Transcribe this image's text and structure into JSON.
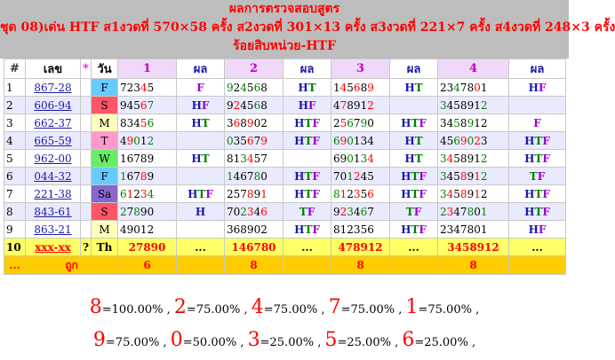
{
  "header": {
    "title": "ผลการตรวจสอบสูตร",
    "line2": "ชุด 08)เด่น HTF ส1งวดที่ 570×58 ครั้ง ส2งวดที่ 301×13 ครั้ง ส3งวดที่ 221×7 ครั้ง ส4งวดที่ 248×3 ครั้ง",
    "line3": "ร้อยสิบหน่วย-HTF"
  },
  "columns": [
    "#",
    "เลข",
    "*",
    "วัน",
    "1",
    "ผล",
    "2",
    "ผล",
    "3",
    "ผล",
    "4",
    "ผล"
  ],
  "colors": {
    "black": "#000000",
    "red": "#ff0000",
    "green": "#008000",
    "blue": "#1a1aaa",
    "purple": "#9900cc"
  },
  "rows": [
    {
      "n": "1",
      "lek": "867-28",
      "day": "F",
      "day_bg": "#66ccff",
      "cells": [
        {
          "d": "72345",
          "r": "F"
        },
        {
          "d": "924568",
          "r": "HT"
        },
        {
          "d": "145689",
          "r": "HT"
        },
        {
          "d": "2347801",
          "r": "HF"
        }
      ]
    },
    {
      "n": "2",
      "lek": "606-94",
      "day": "S",
      "day_bg": "#ff5566",
      "cells": [
        {
          "d": "94567",
          "r": "HF"
        },
        {
          "d": "924568",
          "r": "HF"
        },
        {
          "d": "478912",
          "r": ""
        },
        {
          "d": "3458912",
          "r": ""
        }
      ]
    },
    {
      "n": "3",
      "lek": "662-37",
      "day": "M",
      "day_bg": "#ffffbb",
      "cells": [
        {
          "d": "83456",
          "r": "HT"
        },
        {
          "d": "368902",
          "r": "HTF"
        },
        {
          "d": "256790",
          "r": "HTF"
        },
        {
          "d": "3458912",
          "r": "F"
        }
      ]
    },
    {
      "n": "4",
      "lek": "665-59",
      "day": "T",
      "day_bg": "#ff99cc",
      "cells": [
        {
          "d": "49012",
          "r": ""
        },
        {
          "d": "035679",
          "r": "HTF"
        },
        {
          "d": "690134",
          "r": "HT"
        },
        {
          "d": "4569023",
          "r": "HTF"
        }
      ]
    },
    {
      "n": "5",
      "lek": "962-00",
      "day": "W",
      "day_bg": "#66ee66",
      "cells": [
        {
          "d": "16789",
          "r": "HT"
        },
        {
          "d": "813457",
          "r": ""
        },
        {
          "d": "690134",
          "r": "HT"
        },
        {
          "d": "3458912",
          "r": "HTF"
        }
      ]
    },
    {
      "n": "6",
      "lek": "044-32",
      "day": "F",
      "day_bg": "#66ccff",
      "cells": [
        {
          "d": "16789",
          "r": ""
        },
        {
          "d": "146780",
          "r": "HTF"
        },
        {
          "d": "701245",
          "r": "HTF"
        },
        {
          "d": "3458912",
          "r": "TF"
        }
      ]
    },
    {
      "n": "7",
      "lek": "221-38",
      "day": "Sa",
      "day_bg": "#8866cc",
      "cells": [
        {
          "d": "61234",
          "r": "HTF"
        },
        {
          "d": "257891",
          "r": "HTF"
        },
        {
          "d": "812356",
          "r": "HTF"
        },
        {
          "d": "3458912",
          "r": "HTF"
        }
      ]
    },
    {
      "n": "8",
      "lek": "843-61",
      "day": "S",
      "day_bg": "#ff5566",
      "cells": [
        {
          "d": "27890",
          "r": "H"
        },
        {
          "d": "702346",
          "r": "TF"
        },
        {
          "d": "923467",
          "r": "TF"
        },
        {
          "d": "2347801",
          "r": "HTF"
        }
      ]
    },
    {
      "n": "9",
      "lek": "863-21",
      "day": "M",
      "day_bg": "#ffffbb",
      "cells": [
        {
          "d": "49012",
          "r": ""
        },
        {
          "d": "368902",
          "r": "HTF"
        },
        {
          "d": "812356",
          "r": "HTF"
        },
        {
          "d": "2347801",
          "r": "HF"
        }
      ]
    }
  ],
  "pending": {
    "n": "10",
    "lek": "xxx-xx",
    "star": "?",
    "day": "Th",
    "cells": [
      {
        "d": "27890",
        "r": "..."
      },
      {
        "d": "146780",
        "r": "..."
      },
      {
        "d": "478912",
        "r": "..."
      },
      {
        "d": "3458912",
        "r": "..."
      }
    ]
  },
  "totals": {
    "n": "...",
    "label": "ถูก",
    "vals": [
      "6",
      "8",
      "8",
      "8"
    ]
  },
  "summary": [
    [
      {
        "d": "8",
        "p": "=100.00% ,"
      },
      {
        "d": "2",
        "p": "=75.00% ,"
      },
      {
        "d": "4",
        "p": "=75.00% ,"
      },
      {
        "d": "7",
        "p": "=75.00% ,"
      },
      {
        "d": "1",
        "p": "=75.00% ,"
      }
    ],
    [
      {
        "d": "9",
        "p": "=75.00% ,"
      },
      {
        "d": "0",
        "p": "=50.00% ,"
      },
      {
        "d": "3",
        "p": "=25.00% ,"
      },
      {
        "d": "5",
        "p": "=25.00% ,"
      },
      {
        "d": "6",
        "p": "=25.00% ,"
      }
    ]
  ]
}
